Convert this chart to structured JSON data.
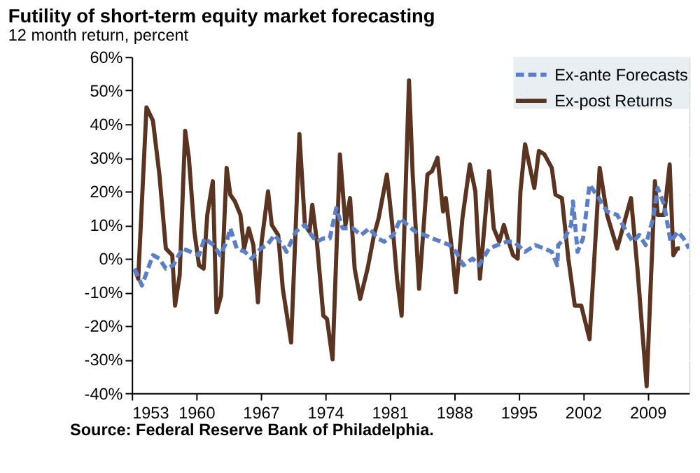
{
  "chart_data": {
    "type": "line",
    "title": "Futility of short-term  equity market forecasting",
    "subtitle": "12 month return, percent",
    "annotations": [
      "Source: Federal Reserve Bank of Philadelphia."
    ],
    "xlim": [
      1953,
      2013.5
    ],
    "xticks": [
      1953,
      1960,
      1967,
      1974,
      1981,
      1988,
      1995,
      2002,
      2009
    ],
    "ylim": [
      -40,
      60
    ],
    "yticks": [
      {
        "value": -40,
        "label": "-40%"
      },
      {
        "value": -30,
        "label": "-30%"
      },
      {
        "value": -20,
        "label": "-20%"
      },
      {
        "value": -10,
        "label": "-10%"
      },
      {
        "value": 0,
        "label": "0%"
      },
      {
        "value": 10,
        "label": "10%"
      },
      {
        "value": 20,
        "label": "20%"
      },
      {
        "value": 30,
        "label": "30%"
      },
      {
        "value": 40,
        "label": "40%"
      },
      {
        "value": 50,
        "label": "50%"
      },
      {
        "value": 60,
        "label": "60%"
      }
    ],
    "grid": "y",
    "legend": "top right",
    "series": [
      {
        "name": "Ex-ante Forecasts",
        "color": "#5b7fc7",
        "line_style": "dashed",
        "x": [
          1953.3,
          1954.1,
          1955.3,
          1956.0,
          1956.7,
          1957.5,
          1958.5,
          1959.4,
          1960.3,
          1960.9,
          1961.9,
          1962.6,
          1963.3,
          1963.7,
          1964.4,
          1965.3,
          1966.0,
          1967.0,
          1967.7,
          1968.5,
          1969.4,
          1969.8,
          1970.8,
          1971.8,
          1972.5,
          1973.1,
          1973.8,
          1974.5,
          1975.2,
          1975.9,
          1977.0,
          1977.9,
          1978.8,
          1979.7,
          1980.4,
          1981.4,
          1982.2,
          1982.9,
          1983.8,
          1984.8,
          1985.6,
          1986.6,
          1987.5,
          1988.2,
          1989.0,
          1990.0,
          1990.7,
          1991.8,
          1992.7,
          1993.7,
          1994.5,
          1995.7,
          1996.8,
          1997.8,
          1998.6,
          1999.2,
          1999.3,
          2000.0,
          2000.7,
          2000.9,
          2001.4,
          2002.0,
          2002.7,
          2003.7,
          2004.6,
          2005.7,
          2006.7,
          2007.4,
          2008.1,
          2008.8,
          2009.6,
          2010.1,
          2010.8,
          2011.5,
          2012.3,
          2012.9,
          2013.5
        ],
        "values": [
          -3,
          -8,
          1,
          0,
          -3,
          -2,
          3,
          2,
          1,
          6,
          4,
          1,
          5,
          9,
          3,
          2,
          0,
          3,
          4,
          7,
          4,
          2,
          8,
          10,
          7,
          5,
          6,
          6,
          15,
          9,
          9,
          7,
          9,
          6,
          5,
          7,
          12,
          10,
          8,
          7,
          6,
          5,
          4,
          2,
          -2,
          0,
          -2,
          3,
          4,
          5,
          5,
          2,
          4,
          3,
          2,
          -2,
          4,
          6,
          10,
          17,
          2,
          6,
          22,
          18,
          14,
          13,
          8,
          5,
          7,
          4,
          12,
          21,
          16,
          5,
          8,
          6,
          3
        ]
      },
      {
        "name": "Ex-post Returns",
        "color": "#5a3420",
        "line_style": "solid",
        "x": [
          1953.3,
          1953.7,
          1954.6,
          1955.3,
          1956.0,
          1956.7,
          1957.4,
          1957.7,
          1958.2,
          1958.8,
          1959.2,
          1959.8,
          1960.3,
          1960.8,
          1961.2,
          1961.8,
          1962.2,
          1962.7,
          1963.3,
          1963.7,
          1964.2,
          1964.8,
          1965.2,
          1965.7,
          1966.2,
          1966.7,
          1967.1,
          1967.8,
          1968.2,
          1968.9,
          1969.4,
          1970.3,
          1971.2,
          1971.8,
          1972.3,
          1972.6,
          1973.1,
          1973.8,
          1974.2,
          1974.8,
          1975.6,
          1976.2,
          1976.7,
          1977.2,
          1977.8,
          1978.6,
          1979.3,
          1979.8,
          1980.7,
          1981.4,
          1981.8,
          1982.3,
          1983.1,
          1983.5,
          1984.2,
          1985.1,
          1985.6,
          1986.2,
          1986.8,
          1987.1,
          1987.7,
          1988.2,
          1988.9,
          1989.7,
          1990.3,
          1990.8,
          1991.8,
          1992.3,
          1992.9,
          1993.4,
          1993.8,
          1994.4,
          1994.9,
          1995.2,
          1995.7,
          1996.7,
          1997.2,
          1997.8,
          1998.6,
          1999.0,
          1999.7,
          2000.4,
          2001.1,
          2001.8,
          2002.7,
          2003.8,
          2004.6,
          2005.7,
          2007.2,
          2007.9,
          2008.9,
          2009.8,
          2010.1,
          2010.8,
          2011.4,
          2011.8,
          2012.2,
          2012.5
        ],
        "values": [
          -3,
          -6,
          45,
          41,
          25,
          3,
          1,
          -14,
          -5,
          38,
          30,
          8,
          -2,
          -3,
          13,
          23,
          -16,
          -11,
          27,
          19,
          17,
          13,
          3,
          9,
          4,
          -13,
          5,
          20,
          10,
          7,
          -9,
          -25,
          37,
          10,
          8,
          16,
          5,
          -17,
          -18,
          -30,
          31,
          10,
          18,
          -3,
          -12,
          -3,
          7,
          12,
          25,
          7,
          -6,
          -17,
          53,
          25,
          -9,
          25,
          26,
          30,
          14,
          18,
          4,
          -10,
          12,
          28,
          20,
          -6,
          26,
          9,
          5,
          10,
          6,
          1,
          0,
          20,
          34,
          21,
          32,
          31,
          27,
          19,
          18,
          0,
          -14,
          -14,
          -24,
          27,
          13,
          3,
          18,
          -3,
          -38,
          23,
          13,
          13,
          28,
          1,
          3,
          3
        ]
      }
    ]
  }
}
